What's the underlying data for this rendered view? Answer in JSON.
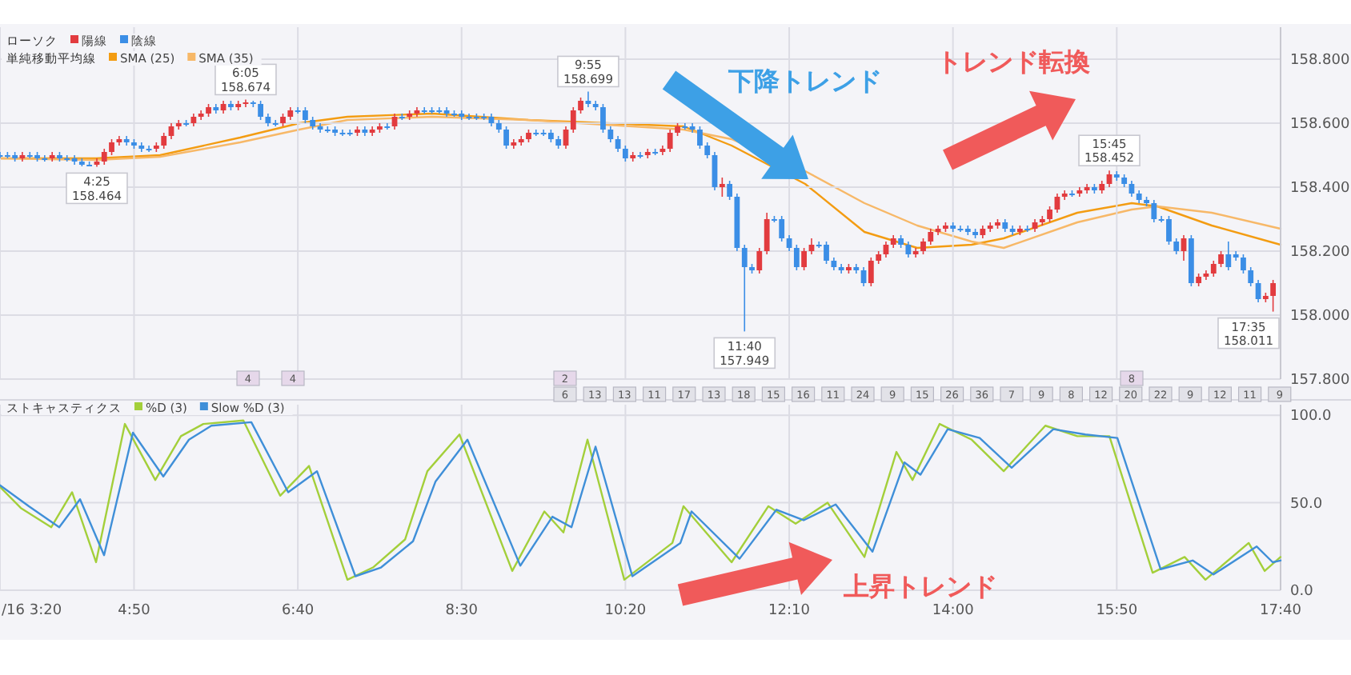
{
  "chart_data": [
    {
      "type": "candlestick",
      "legend_title": "ローソク",
      "legend": "top left",
      "grid": true,
      "tick_labels": "y",
      "xlim": [
        3.333,
        17.667
      ],
      "ylim": [
        157.8,
        158.9
      ],
      "xticks": [
        {
          "value": 3.333,
          "label": null
        },
        {
          "value": 4.8333,
          "label": null
        },
        {
          "value": 6.6667,
          "label": null
        },
        {
          "value": 8.5,
          "label": null
        },
        {
          "value": 10.3333,
          "label": null
        },
        {
          "value": 12.1667,
          "label": null
        },
        {
          "value": 14,
          "label": null
        },
        {
          "value": 15.8333,
          "label": null
        },
        {
          "value": 17.667,
          "label": null
        }
      ],
      "yticks": [
        {
          "value": 157.8,
          "label": "157.800"
        },
        {
          "value": 158,
          "label": "158.000"
        },
        {
          "value": 158.2,
          "label": "158.200"
        },
        {
          "value": 158.4,
          "label": "158.400"
        },
        {
          "value": 158.6,
          "label": "158.600"
        },
        {
          "value": 158.8,
          "label": "158.800"
        }
      ],
      "series": [
        {
          "name": "陽線",
          "color": "#e23b3f",
          "x": [
            3.583,
            3.917,
            4.417,
            4.5,
            4.583,
            4.667,
            5.083,
            5.167,
            5.25,
            5.333,
            5.5,
            5.583,
            5.667,
            5.833,
            6.0,
            6.083,
            6.5,
            6.583,
            7.333,
            7.5,
            7.583,
            7.75,
            7.917,
            8.0,
            9.083,
            9.167,
            9.25,
            9.667,
            9.75,
            9.833,
            10.417,
            10.583,
            10.75,
            10.833,
            10.917,
            11.417,
            11.833,
            11.917,
            12.333,
            12.417,
            12.833,
            13.083,
            13.167,
            13.25,
            13.333,
            13.583,
            13.667,
            13.75,
            13.833,
            13.917,
            14.333,
            14.417,
            14.5,
            14.75,
            14.917,
            15.0,
            15.083,
            15.167,
            15.25,
            15.417,
            15.5,
            15.667,
            15.75,
            16.583,
            16.75,
            16.833,
            16.917,
            17.0,
            17.5,
            17.583
          ],
          "ohlc": [
            [
              158.49,
              158.51,
              158.48,
              158.5
            ],
            [
              158.49,
              158.51,
              158.48,
              158.5
            ],
            [
              158.47,
              158.49,
              158.464,
              158.48
            ],
            [
              158.48,
              158.52,
              158.47,
              158.51
            ],
            [
              158.51,
              158.55,
              158.5,
              158.54
            ],
            [
              158.54,
              158.56,
              158.53,
              158.55
            ],
            [
              158.52,
              158.54,
              158.51,
              158.53
            ],
            [
              158.53,
              158.57,
              158.52,
              158.56
            ],
            [
              158.56,
              158.6,
              158.55,
              158.59
            ],
            [
              158.59,
              158.61,
              158.58,
              158.6
            ],
            [
              158.6,
              158.63,
              158.59,
              158.62
            ],
            [
              158.62,
              158.64,
              158.61,
              158.63
            ],
            [
              158.63,
              158.66,
              158.62,
              158.65
            ],
            [
              158.64,
              158.67,
              158.63,
              158.66
            ],
            [
              158.65,
              158.67,
              158.64,
              158.66
            ],
            [
              158.66,
              158.674,
              158.65,
              158.665
            ],
            [
              158.6,
              158.63,
              158.59,
              158.62
            ],
            [
              158.62,
              158.65,
              158.61,
              158.64
            ],
            [
              158.57,
              158.59,
              158.56,
              158.58
            ],
            [
              158.57,
              158.59,
              158.56,
              158.58
            ],
            [
              158.58,
              158.6,
              158.57,
              158.59
            ],
            [
              158.59,
              158.63,
              158.58,
              158.62
            ],
            [
              158.62,
              158.64,
              158.61,
              158.63
            ],
            [
              158.63,
              158.65,
              158.62,
              158.64
            ],
            [
              158.53,
              158.55,
              158.52,
              158.54
            ],
            [
              158.54,
              158.56,
              158.53,
              158.55
            ],
            [
              158.55,
              158.58,
              158.54,
              158.57
            ],
            [
              158.53,
              158.59,
              158.52,
              158.58
            ],
            [
              158.58,
              158.65,
              158.57,
              158.64
            ],
            [
              158.64,
              158.68,
              158.63,
              158.67
            ],
            [
              158.49,
              158.51,
              158.48,
              158.5
            ],
            [
              158.5,
              158.52,
              158.49,
              158.51
            ],
            [
              158.51,
              158.53,
              158.5,
              158.52
            ],
            [
              158.52,
              158.58,
              158.51,
              158.57
            ],
            [
              158.57,
              158.6,
              158.56,
              158.59
            ],
            [
              158.4,
              158.43,
              158.37,
              158.41
            ],
            [
              158.14,
              158.21,
              158.13,
              158.2
            ],
            [
              158.2,
              158.32,
              158.19,
              158.3
            ],
            [
              158.15,
              158.21,
              158.14,
              158.2
            ],
            [
              158.2,
              158.24,
              158.19,
              158.22
            ],
            [
              158.14,
              158.16,
              158.13,
              158.15
            ],
            [
              158.1,
              158.18,
              158.09,
              158.17
            ],
            [
              158.17,
              158.2,
              158.16,
              158.19
            ],
            [
              158.19,
              158.23,
              158.18,
              158.22
            ],
            [
              158.22,
              158.25,
              158.21,
              158.24
            ],
            [
              158.19,
              158.21,
              158.18,
              158.2
            ],
            [
              158.2,
              158.24,
              158.19,
              158.23
            ],
            [
              158.23,
              158.27,
              158.22,
              158.26
            ],
            [
              158.26,
              158.28,
              158.25,
              158.27
            ],
            [
              158.27,
              158.29,
              158.26,
              158.28
            ],
            [
              158.25,
              158.28,
              158.24,
              158.27
            ],
            [
              158.27,
              158.29,
              158.26,
              158.28
            ],
            [
              158.28,
              158.3,
              158.27,
              158.29
            ],
            [
              158.26,
              158.28,
              158.25,
              158.27
            ],
            [
              158.27,
              158.3,
              158.26,
              158.29
            ],
            [
              158.29,
              158.31,
              158.28,
              158.3
            ],
            [
              158.3,
              158.34,
              158.29,
              158.33
            ],
            [
              158.33,
              158.38,
              158.32,
              158.37
            ],
            [
              158.37,
              158.39,
              158.36,
              158.38
            ],
            [
              158.38,
              158.4,
              158.37,
              158.39
            ],
            [
              158.39,
              158.41,
              158.38,
              158.4
            ],
            [
              158.39,
              158.42,
              158.38,
              158.41
            ],
            [
              158.41,
              158.452,
              158.4,
              158.44
            ],
            [
              158.2,
              158.25,
              158.17,
              158.24
            ],
            [
              158.1,
              158.13,
              158.09,
              158.12
            ],
            [
              158.12,
              158.14,
              158.11,
              158.13
            ],
            [
              158.13,
              158.17,
              158.12,
              158.16
            ],
            [
              158.16,
              158.2,
              158.15,
              158.19
            ],
            [
              158.05,
              158.07,
              158.04,
              158.06
            ],
            [
              158.06,
              158.11,
              158.011,
              158.1
            ]
          ]
        },
        {
          "name": "陰線",
          "color": "#3b8ee6",
          "x": [
            3.333,
            3.417,
            3.5,
            3.667,
            3.75,
            3.833,
            4.0,
            4.083,
            4.167,
            4.25,
            4.333,
            4.75,
            4.833,
            4.917,
            5.0,
            5.417,
            5.75,
            5.917,
            6.167,
            6.25,
            6.333,
            6.417,
            6.667,
            6.75,
            6.833,
            6.917,
            7.0,
            7.083,
            7.167,
            7.25,
            7.417,
            7.667,
            7.833,
            8.083,
            8.167,
            8.25,
            8.333,
            8.417,
            8.5,
            8.583,
            8.667,
            8.75,
            8.833,
            8.917,
            9.0,
            9.333,
            9.417,
            9.5,
            9.583,
            9.917,
            10.0,
            10.083,
            10.167,
            10.25,
            10.333,
            10.5,
            10.667,
            11.0,
            11.083,
            11.167,
            11.25,
            11.333,
            11.5,
            11.583,
            11.667,
            11.75,
            12.0,
            12.083,
            12.167,
            12.25,
            12.5,
            12.583,
            12.667,
            12.75,
            12.917,
            13.0,
            13.417,
            13.5,
            14.0,
            14.083,
            14.167,
            14.25,
            14.583,
            14.667,
            14.833,
            15.333,
            15.583,
            15.833,
            15.917,
            16.0,
            16.083,
            16.167,
            16.25,
            16.333,
            16.417,
            16.5,
            16.667,
            17.083,
            17.167,
            17.25,
            17.333,
            17.417
          ],
          "ohlc": [
            [
              158.5,
              158.51,
              158.49,
              158.5
            ],
            [
              158.5,
              158.51,
              158.49,
              158.5
            ],
            [
              158.5,
              158.51,
              158.48,
              158.49
            ],
            [
              158.5,
              158.51,
              158.49,
              158.5
            ],
            [
              158.5,
              158.51,
              158.48,
              158.49
            ],
            [
              158.49,
              158.5,
              158.48,
              158.49
            ],
            [
              158.5,
              158.51,
              158.48,
              158.49
            ],
            [
              158.49,
              158.5,
              158.48,
              158.49
            ],
            [
              158.49,
              158.5,
              158.47,
              158.48
            ],
            [
              158.48,
              158.49,
              158.465,
              158.47
            ],
            [
              158.47,
              158.48,
              158.465,
              158.47
            ],
            [
              158.55,
              158.56,
              158.53,
              158.54
            ],
            [
              158.54,
              158.55,
              158.52,
              158.53
            ],
            [
              158.53,
              158.54,
              158.51,
              158.52
            ],
            [
              158.52,
              158.53,
              158.51,
              158.52
            ],
            [
              158.6,
              158.61,
              158.59,
              158.6
            ],
            [
              158.65,
              158.66,
              158.63,
              158.64
            ],
            [
              158.66,
              158.67,
              158.64,
              158.65
            ],
            [
              158.665,
              158.67,
              158.65,
              158.66
            ],
            [
              158.66,
              158.67,
              158.61,
              158.62
            ],
            [
              158.62,
              158.63,
              158.59,
              158.6
            ],
            [
              158.6,
              158.61,
              158.59,
              158.6
            ],
            [
              158.64,
              158.65,
              158.63,
              158.64
            ],
            [
              158.64,
              158.65,
              158.6,
              158.61
            ],
            [
              158.61,
              158.62,
              158.58,
              158.59
            ],
            [
              158.59,
              158.6,
              158.57,
              158.58
            ],
            [
              158.58,
              158.59,
              158.57,
              158.58
            ],
            [
              158.58,
              158.59,
              158.56,
              158.57
            ],
            [
              158.57,
              158.58,
              158.56,
              158.57
            ],
            [
              158.57,
              158.58,
              158.56,
              158.57
            ],
            [
              158.58,
              158.59,
              158.56,
              158.57
            ],
            [
              158.59,
              158.6,
              158.58,
              158.59
            ],
            [
              158.62,
              158.63,
              158.61,
              158.62
            ],
            [
              158.64,
              158.65,
              158.63,
              158.64
            ],
            [
              158.64,
              158.65,
              158.63,
              158.64
            ],
            [
              158.64,
              158.65,
              158.63,
              158.64
            ],
            [
              158.64,
              158.65,
              158.62,
              158.63
            ],
            [
              158.63,
              158.64,
              158.62,
              158.63
            ],
            [
              158.63,
              158.64,
              158.61,
              158.62
            ],
            [
              158.62,
              158.63,
              158.61,
              158.62
            ],
            [
              158.62,
              158.63,
              158.61,
              158.62
            ],
            [
              158.62,
              158.63,
              158.61,
              158.62
            ],
            [
              158.62,
              158.63,
              158.59,
              158.6
            ],
            [
              158.6,
              158.61,
              158.57,
              158.58
            ],
            [
              158.58,
              158.59,
              158.52,
              158.53
            ],
            [
              158.57,
              158.58,
              158.56,
              158.57
            ],
            [
              158.57,
              158.58,
              158.56,
              158.57
            ],
            [
              158.57,
              158.58,
              158.54,
              158.55
            ],
            [
              158.55,
              158.56,
              158.52,
              158.53
            ],
            [
              158.67,
              158.699,
              158.65,
              158.66
            ],
            [
              158.66,
              158.67,
              158.64,
              158.65
            ],
            [
              158.65,
              158.66,
              158.57,
              158.58
            ],
            [
              158.58,
              158.59,
              158.54,
              158.55
            ],
            [
              158.55,
              158.56,
              158.51,
              158.52
            ],
            [
              158.52,
              158.53,
              158.48,
              158.49
            ],
            [
              158.5,
              158.51,
              158.49,
              158.5
            ],
            [
              158.51,
              158.52,
              158.5,
              158.51
            ],
            [
              158.59,
              158.6,
              158.58,
              158.59
            ],
            [
              158.59,
              158.6,
              158.57,
              158.58
            ],
            [
              158.58,
              158.59,
              158.52,
              158.53
            ],
            [
              158.53,
              158.54,
              158.49,
              158.5
            ],
            [
              158.5,
              158.51,
              158.39,
              158.4
            ],
            [
              158.41,
              158.42,
              158.36,
              158.37
            ],
            [
              158.37,
              158.38,
              158.2,
              158.21
            ],
            [
              158.21,
              158.22,
              157.949,
              158.15
            ],
            [
              158.15,
              158.16,
              158.13,
              158.14
            ],
            [
              158.3,
              158.31,
              158.29,
              158.3
            ],
            [
              158.3,
              158.31,
              158.23,
              158.24
            ],
            [
              158.24,
              158.25,
              158.2,
              158.21
            ],
            [
              158.21,
              158.22,
              158.14,
              158.15
            ],
            [
              158.22,
              158.23,
              158.21,
              158.22
            ],
            [
              158.22,
              158.23,
              158.16,
              158.17
            ],
            [
              158.17,
              158.18,
              158.14,
              158.15
            ],
            [
              158.15,
              158.16,
              158.13,
              158.14
            ],
            [
              158.15,
              158.16,
              158.13,
              158.14
            ],
            [
              158.14,
              158.15,
              158.09,
              158.1
            ],
            [
              158.24,
              158.25,
              158.21,
              158.22
            ],
            [
              158.22,
              158.23,
              158.18,
              158.19
            ],
            [
              158.28,
              158.29,
              158.26,
              158.27
            ],
            [
              158.27,
              158.28,
              158.26,
              158.27
            ],
            [
              158.27,
              158.28,
              158.25,
              158.26
            ],
            [
              158.26,
              158.27,
              158.24,
              158.25
            ],
            [
              158.29,
              158.3,
              158.26,
              158.27
            ],
            [
              158.27,
              158.28,
              158.25,
              158.26
            ],
            [
              158.27,
              158.28,
              158.26,
              158.27
            ],
            [
              158.38,
              158.39,
              158.37,
              158.38
            ],
            [
              158.4,
              158.41,
              158.38,
              158.39
            ],
            [
              158.44,
              158.45,
              158.42,
              158.43
            ],
            [
              158.43,
              158.44,
              158.4,
              158.41
            ],
            [
              158.41,
              158.42,
              158.37,
              158.38
            ],
            [
              158.38,
              158.39,
              158.35,
              158.36
            ],
            [
              158.36,
              158.37,
              158.34,
              158.35
            ],
            [
              158.35,
              158.36,
              158.29,
              158.3
            ],
            [
              158.3,
              158.31,
              158.29,
              158.3
            ],
            [
              158.3,
              158.31,
              158.22,
              158.23
            ],
            [
              158.23,
              158.24,
              158.19,
              158.2
            ],
            [
              158.24,
              158.25,
              158.09,
              158.1
            ],
            [
              158.19,
              158.23,
              158.14,
              158.15
            ],
            [
              158.19,
              158.2,
              158.17,
              158.18
            ],
            [
              158.18,
              158.19,
              158.13,
              158.14
            ],
            [
              158.14,
              158.15,
              158.09,
              158.1
            ],
            [
              158.1,
              158.11,
              158.04,
              158.05
            ]
          ]
        }
      ],
      "annotations": [
        "下降トレンド",
        "トレンド転換",
        {
          "text": "4:25\n158.464",
          "x": 4.417,
          "y": 158.464
        },
        {
          "text": "6:05\n158.674",
          "x": 6.083,
          "y": 158.674
        },
        {
          "text": "9:55\n158.699",
          "x": 9.917,
          "y": 158.699
        },
        {
          "text": "11:40\n157.949",
          "x": 11.667,
          "y": 157.949
        },
        {
          "text": "15:45\n158.452",
          "x": 15.75,
          "y": 158.452
        },
        {
          "text": "17:35\n158.011",
          "x": 17.583,
          "y": 158.011
        },
        "4",
        "4",
        "2",
        "8",
        "6",
        "13",
        "13",
        "11",
        "17",
        "13",
        "18",
        "15",
        "16",
        "11",
        "24",
        "9",
        "15",
        "26",
        "36",
        "7",
        "9",
        "8",
        "12",
        "20",
        "22",
        "9",
        "12",
        "11",
        "9"
      ]
    },
    {
      "type": "line",
      "legend_title": "単純移動平均線",
      "legend": "top left",
      "tick_labels": false,
      "xlim": [
        3.333,
        17.667
      ],
      "ylim": [
        157.8,
        158.9
      ],
      "series": [
        {
          "name": "SMA (25)",
          "color": "#f39c12",
          "x": [
            3.333,
            4.408,
            5.125,
            6.021,
            6.684,
            7.222,
            8.171,
            9.246,
            10.984,
            11.522,
            12.346,
            13.009,
            13.6,
            14.209,
            14.568,
            15.392,
            16.001,
            16.288,
            16.897,
            17.667
          ],
          "values": [
            158.49,
            158.49,
            158.5,
            158.555,
            158.6,
            158.62,
            158.63,
            158.61,
            158.59,
            158.53,
            158.41,
            158.26,
            158.21,
            158.22,
            158.24,
            158.32,
            158.35,
            158.34,
            158.28,
            158.22
          ]
        },
        {
          "name": "SMA (35)",
          "color": "#f7b868",
          "x": [
            3.333,
            4.408,
            5.125,
            6.021,
            6.684,
            7.222,
            8.171,
            9.246,
            10.984,
            11.522,
            12.346,
            13.009,
            13.6,
            14.209,
            14.568,
            15.392,
            16.001,
            16.288,
            16.897,
            17.667
          ],
          "values": [
            158.49,
            158.485,
            158.495,
            158.54,
            158.58,
            158.61,
            158.62,
            158.61,
            158.58,
            158.55,
            158.45,
            158.35,
            158.28,
            158.23,
            158.21,
            158.29,
            158.33,
            158.34,
            158.32,
            158.27
          ]
        }
      ]
    },
    {
      "type": "line",
      "legend_title": "ストキャスティクス",
      "legend": "top left",
      "grid": true,
      "xlim": [
        3.333,
        17.667
      ],
      "ylim": [
        0,
        106
      ],
      "xticks": [
        {
          "value": 3.333,
          "label": "/16 3:20"
        },
        {
          "value": 4.8333,
          "label": "4:50"
        },
        {
          "value": 6.6667,
          "label": "6:40"
        },
        {
          "value": 8.5,
          "label": "8:30"
        },
        {
          "value": 10.3333,
          "label": "10:20"
        },
        {
          "value": 12.1667,
          "label": "12:10"
        },
        {
          "value": 14,
          "label": "14:00"
        },
        {
          "value": 15.8333,
          "label": "15:50"
        },
        {
          "value": 17.667,
          "label": "17:40"
        }
      ],
      "yticks": [
        {
          "value": 0,
          "label": "0.0"
        },
        {
          "value": 50,
          "label": "50.0"
        },
        {
          "value": 100,
          "label": "100.0"
        }
      ],
      "series": [
        {
          "name": "%D (3)",
          "color": "#a3cf3a",
          "x": [
            3.333,
            3.566,
            3.907,
            4.14,
            4.408,
            4.731,
            5.071,
            5.358,
            5.609,
            6.057,
            6.469,
            6.792,
            7.222,
            7.508,
            7.867,
            8.117,
            8.476,
            9.067,
            9.426,
            9.64,
            9.909,
            10.321,
            10.859,
            10.984,
            11.522,
            11.934,
            12.239,
            12.597,
            13.009,
            13.367,
            13.547,
            13.851,
            14.21,
            14.568,
            15.034,
            15.392,
            15.751,
            16.235,
            16.593,
            16.826,
            17.31,
            17.489,
            17.667
          ],
          "values": [
            59,
            47,
            36,
            56,
            16,
            95,
            63,
            88,
            95,
            97,
            54,
            71,
            6,
            13,
            29,
            68,
            89,
            11,
            45,
            33,
            86,
            6,
            27,
            48,
            16,
            48,
            38,
            50,
            19,
            79,
            63,
            95,
            86,
            68,
            94,
            88,
            88,
            10,
            19,
            6,
            27,
            11,
            19
          ]
        },
        {
          "name": "Slow %D (3)",
          "color": "#3f8fd8",
          "x": [
            3.333,
            3.656,
            3.996,
            4.229,
            4.498,
            4.821,
            5.161,
            5.448,
            5.699,
            6.146,
            6.559,
            6.881,
            7.311,
            7.598,
            7.956,
            8.207,
            8.565,
            9.157,
            9.516,
            9.73,
            9.999,
            10.411,
            10.949,
            11.074,
            11.611,
            12.024,
            12.328,
            12.687,
            13.099,
            13.457,
            13.636,
            13.941,
            14.299,
            14.657,
            15.123,
            15.482,
            15.84,
            16.324,
            16.683,
            16.916,
            17.4,
            17.579,
            17.667
          ],
          "values": [
            60,
            48,
            36,
            52,
            20,
            90,
            65,
            86,
            94,
            96,
            56,
            68,
            8,
            13,
            28,
            62,
            86,
            14,
            42,
            36,
            82,
            8,
            27,
            45,
            18,
            46,
            40,
            49,
            22,
            73,
            66,
            92,
            87,
            70,
            92,
            89,
            87,
            12,
            17,
            9,
            25,
            16,
            17
          ]
        }
      ],
      "annotations": [
        "上昇トレンド"
      ]
    }
  ]
}
